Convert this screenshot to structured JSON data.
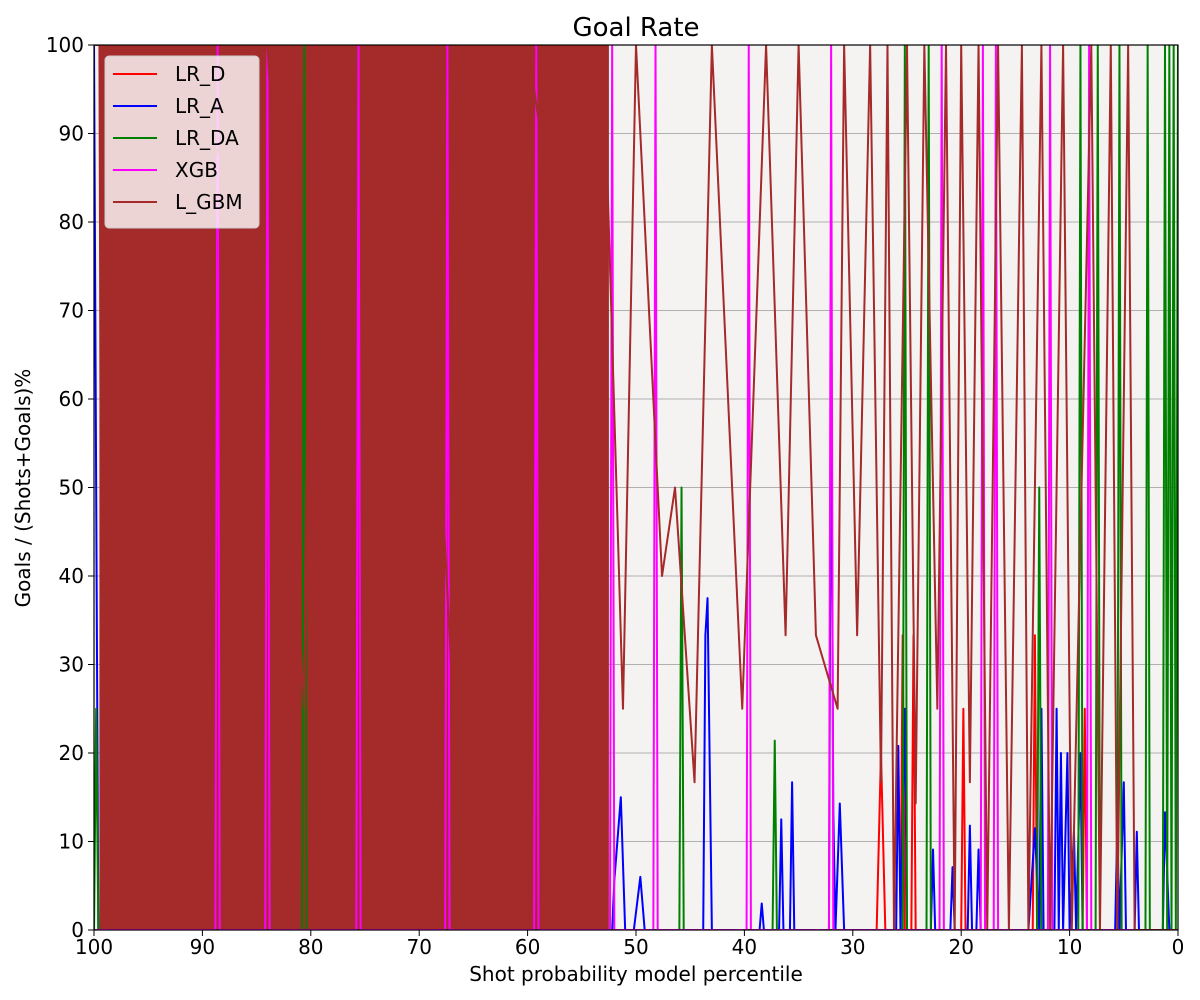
{
  "chart_data": {
    "type": "line",
    "title": "Goal Rate",
    "xlabel": "Shot probability model percentile",
    "ylabel": "Goals / (Shots+Goals)%",
    "xlim": [
      100,
      0
    ],
    "ylim": [
      0,
      100
    ],
    "x_ticks": [
      "100",
      "90",
      "80",
      "70",
      "60",
      "50",
      "40",
      "30",
      "20",
      "10",
      "0"
    ],
    "y_ticks": [
      "0",
      "10",
      "20",
      "30",
      "40",
      "50",
      "60",
      "70",
      "80",
      "90",
      "100"
    ],
    "grid": "horizontal",
    "legend_position": "top-left",
    "series": [
      {
        "name": "LR_D",
        "color": "#ff0000",
        "points": [
          [
            27.8,
            0
          ],
          [
            27.4,
            20
          ],
          [
            27.0,
            0
          ],
          [
            25.6,
            0
          ],
          [
            25.4,
            33.3
          ],
          [
            25.2,
            0
          ],
          [
            24.6,
            0
          ],
          [
            24.4,
            33.3
          ],
          [
            24.2,
            0
          ],
          [
            20.0,
            0
          ],
          [
            19.8,
            25
          ],
          [
            19.6,
            0
          ],
          [
            13.4,
            0
          ],
          [
            13.2,
            33.3
          ],
          [
            13.0,
            0
          ],
          [
            8.8,
            0
          ],
          [
            8.6,
            25
          ],
          [
            8.4,
            0
          ],
          [
            0,
            0
          ]
        ]
      },
      {
        "name": "LR_A",
        "color": "#0000ff",
        "points": [
          [
            100,
            100
          ],
          [
            99.6,
            0
          ],
          [
            52.2,
            0
          ],
          [
            52.0,
            5.6
          ],
          [
            51.4,
            15
          ],
          [
            51.0,
            0
          ],
          [
            50.2,
            0
          ],
          [
            49.6,
            6
          ],
          [
            49.2,
            0
          ],
          [
            43.8,
            0
          ],
          [
            43.6,
            33.3
          ],
          [
            43.4,
            37.5
          ],
          [
            43.0,
            0
          ],
          [
            38.6,
            0
          ],
          [
            38.4,
            3
          ],
          [
            38.2,
            0
          ],
          [
            36.8,
            0
          ],
          [
            36.6,
            12.5
          ],
          [
            36.4,
            0
          ],
          [
            35.8,
            0
          ],
          [
            35.6,
            16.7
          ],
          [
            35.4,
            0
          ],
          [
            32.2,
            0
          ],
          [
            32.0,
            66.7
          ],
          [
            31.8,
            13.3
          ],
          [
            31.6,
            0
          ],
          [
            31.2,
            14.3
          ],
          [
            30.8,
            0
          ],
          [
            26.0,
            0
          ],
          [
            25.8,
            20.8
          ],
          [
            25.6,
            0
          ],
          [
            25.2,
            25
          ],
          [
            25.0,
            0
          ],
          [
            22.8,
            0
          ],
          [
            22.6,
            9.1
          ],
          [
            22.4,
            0
          ],
          [
            21.0,
            0
          ],
          [
            20.8,
            7.1
          ],
          [
            20.6,
            0
          ],
          [
            19.4,
            0
          ],
          [
            19.2,
            11.8
          ],
          [
            19.0,
            0
          ],
          [
            18.6,
            0
          ],
          [
            18.4,
            9.1
          ],
          [
            18.2,
            0
          ],
          [
            13.8,
            0
          ],
          [
            13.2,
            11.5
          ],
          [
            12.8,
            0
          ],
          [
            12.6,
            25
          ],
          [
            12.4,
            0
          ],
          [
            11.4,
            0
          ],
          [
            11.2,
            25
          ],
          [
            11.0,
            0
          ],
          [
            10.8,
            20
          ],
          [
            10.6,
            0
          ],
          [
            10.2,
            20
          ],
          [
            10.0,
            0
          ],
          [
            9.6,
            11.1
          ],
          [
            9.4,
            0
          ],
          [
            9.0,
            20
          ],
          [
            8.8,
            0
          ],
          [
            5.8,
            0
          ],
          [
            5.6,
            11.8
          ],
          [
            5.4,
            0
          ],
          [
            5.0,
            16.7
          ],
          [
            4.8,
            0
          ],
          [
            4.0,
            0
          ],
          [
            3.8,
            11.1
          ],
          [
            3.6,
            0
          ],
          [
            1.4,
            0
          ],
          [
            1.2,
            13.3
          ],
          [
            0.8,
            0
          ],
          [
            0,
            0
          ]
        ]
      },
      {
        "name": "LR_DA",
        "color": "#008000",
        "points": [
          [
            100,
            0
          ],
          [
            99.8,
            25
          ],
          [
            99.6,
            0
          ],
          [
            80.8,
            0
          ],
          [
            80.6,
            100
          ],
          [
            80.4,
            0
          ],
          [
            46.0,
            0
          ],
          [
            45.8,
            50
          ],
          [
            45.6,
            0
          ],
          [
            37.4,
            0
          ],
          [
            37.2,
            21.4
          ],
          [
            37.0,
            0
          ],
          [
            25.4,
            0
          ],
          [
            25.2,
            100
          ],
          [
            25.0,
            0
          ],
          [
            23.2,
            0
          ],
          [
            23.0,
            100
          ],
          [
            22.8,
            0
          ],
          [
            13.0,
            0
          ],
          [
            12.8,
            50
          ],
          [
            12.6,
            0
          ],
          [
            9.2,
            0
          ],
          [
            9.0,
            100
          ],
          [
            8.8,
            0
          ],
          [
            7.6,
            0
          ],
          [
            7.4,
            100
          ],
          [
            7.2,
            0
          ],
          [
            5.6,
            0
          ],
          [
            5.4,
            100
          ],
          [
            5.2,
            0
          ],
          [
            3.0,
            0
          ],
          [
            2.8,
            100
          ],
          [
            2.6,
            0
          ],
          [
            1.4,
            0
          ],
          [
            1.2,
            100
          ],
          [
            1.0,
            0
          ],
          [
            0.8,
            100
          ],
          [
            0.6,
            0
          ],
          [
            0.4,
            100
          ],
          [
            0.2,
            0
          ],
          [
            0,
            100
          ]
        ]
      },
      {
        "name": "XGB",
        "color": "#ff00ff",
        "points": [
          [
            100,
            0
          ],
          [
            88.8,
            0
          ],
          [
            88.6,
            100
          ],
          [
            88.4,
            0
          ],
          [
            84.2,
            0
          ],
          [
            84.0,
            100
          ],
          [
            83.8,
            0
          ],
          [
            75.8,
            0
          ],
          [
            75.6,
            100
          ],
          [
            75.4,
            0
          ],
          [
            67.6,
            0
          ],
          [
            67.4,
            100
          ],
          [
            67.2,
            0
          ],
          [
            59.4,
            0
          ],
          [
            59.2,
            100
          ],
          [
            59.0,
            0
          ],
          [
            52.4,
            0
          ],
          [
            52.2,
            100
          ],
          [
            52.0,
            0
          ],
          [
            48.4,
            0
          ],
          [
            48.2,
            100
          ],
          [
            48.0,
            0
          ],
          [
            39.8,
            0
          ],
          [
            39.6,
            100
          ],
          [
            39.4,
            0
          ],
          [
            32.2,
            0
          ],
          [
            32.0,
            100
          ],
          [
            31.8,
            0
          ],
          [
            22.0,
            0
          ],
          [
            21.8,
            100
          ],
          [
            21.6,
            0
          ],
          [
            18.2,
            0
          ],
          [
            18.0,
            100
          ],
          [
            17.8,
            0
          ],
          [
            17.0,
            0
          ],
          [
            16.8,
            100
          ],
          [
            16.6,
            0
          ],
          [
            12.0,
            0
          ],
          [
            11.8,
            100
          ],
          [
            11.6,
            0
          ],
          [
            8.4,
            0
          ],
          [
            8.2,
            100
          ],
          [
            8.0,
            0
          ],
          [
            0,
            0
          ]
        ]
      },
      {
        "name": "L_GBM",
        "color": "#a52a2a",
        "points": [
          [
            100,
            100
          ],
          [
            99.5,
            100
          ],
          [
            99.4,
            60
          ],
          [
            84.0,
            100
          ],
          [
            80.6,
            25
          ],
          [
            80.0,
            100
          ],
          [
            78.2,
            100
          ],
          [
            75.0,
            100
          ],
          [
            70.4,
            33.3
          ],
          [
            70.0,
            100
          ],
          [
            66.4,
            14.3
          ],
          [
            65.0,
            50
          ],
          [
            62.6,
            50
          ],
          [
            61.2,
            20
          ],
          [
            60.0,
            100
          ],
          [
            55.2,
            60
          ],
          [
            53.0,
            100
          ],
          [
            51.2,
            25
          ],
          [
            50.0,
            100
          ],
          [
            47.6,
            40
          ],
          [
            46.4,
            50
          ],
          [
            44.6,
            16.7
          ],
          [
            43.0,
            100
          ],
          [
            40.2,
            25
          ],
          [
            38.0,
            100
          ],
          [
            36.2,
            33.3
          ],
          [
            35.0,
            100
          ],
          [
            33.4,
            33.3
          ],
          [
            31.4,
            25
          ],
          [
            30.8,
            100
          ],
          [
            29.6,
            33.3
          ],
          [
            28.4,
            100
          ],
          [
            27.4,
            16.7
          ],
          [
            26.8,
            100
          ],
          [
            26.2,
            0
          ],
          [
            25.0,
            100
          ],
          [
            24.2,
            14.3
          ],
          [
            23.4,
            100
          ],
          [
            22.2,
            25
          ],
          [
            21.4,
            100
          ],
          [
            20.6,
            0
          ],
          [
            20.0,
            100
          ],
          [
            19.2,
            16.7
          ],
          [
            18.4,
            100
          ],
          [
            17.6,
            0
          ],
          [
            16.6,
            100
          ],
          [
            15.6,
            0
          ],
          [
            14.4,
            100
          ],
          [
            13.8,
            0
          ],
          [
            12.6,
            100
          ],
          [
            11.8,
            0
          ],
          [
            10.6,
            100
          ],
          [
            9.8,
            0
          ],
          [
            8.0,
            100
          ],
          [
            7.2,
            0
          ],
          [
            6.2,
            100
          ],
          [
            5.6,
            0
          ],
          [
            4.6,
            100
          ],
          [
            4.0,
            0
          ],
          [
            0,
            0
          ]
        ]
      }
    ]
  }
}
